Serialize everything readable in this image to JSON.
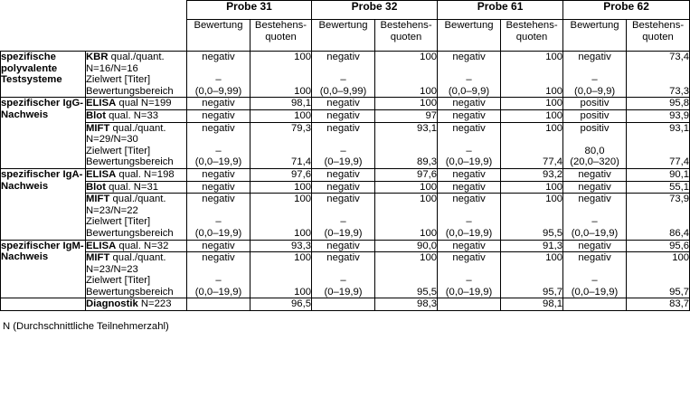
{
  "header": {
    "probes": [
      "Probe 31",
      "Probe 32",
      "Probe 61",
      "Probe 62"
    ],
    "bewertung": "Bewertung",
    "quoten_line1": "Bestehens-",
    "quoten_line2": "quoten"
  },
  "rows": {
    "kbr": {
      "group": "spezifische polyvalente Testsysteme",
      "method_bold": "KBR",
      "method_rest": " qual./quant.",
      "method_line2": "N=16/N=16",
      "zielwert": "Zielwert [Titer]",
      "bereich": "Bewertungsbereich",
      "p31": {
        "bew": "negativ",
        "zw": "–",
        "range": "(0,0–9,99)",
        "q1": "100",
        "q2": "100"
      },
      "p32": {
        "bew": "negativ",
        "zw": "–",
        "range": "(0,0–9,99)",
        "q1": "100",
        "q2": "100"
      },
      "p61": {
        "bew": "negativ",
        "zw": "–",
        "range": "(0,0–9,9)",
        "q1": "100",
        "q2": "100"
      },
      "p62": {
        "bew": "negativ",
        "zw": "–",
        "range": "(0,0–9,9)",
        "q1": "73,4",
        "q2": "73,3"
      }
    },
    "igg": {
      "group": "spezifischer IgG-Nachweis",
      "elisa": {
        "bold": "ELISA",
        "rest": " qual N=199",
        "p31": [
          "negativ",
          "98,1"
        ],
        "p32": [
          "negativ",
          "100"
        ],
        "p61": [
          "negativ",
          "100"
        ],
        "p62": [
          "positiv",
          "95,8"
        ]
      },
      "blot": {
        "bold": "Blot",
        "rest": " qual. N=33",
        "p31": [
          "negativ",
          "100"
        ],
        "p32": [
          "negativ",
          "97"
        ],
        "p61": [
          "negativ",
          "100"
        ],
        "p62": [
          "positiv",
          "93,9"
        ]
      },
      "mift": {
        "bold": "MIFT",
        "rest": " qual./quant.",
        "line2": "N=29/N=30",
        "zielwert": "Zielwert [Titer]",
        "bereich": "Bewertungsbereich",
        "p31": {
          "bew": "negativ",
          "zw": "–",
          "range": "(0,0–19,9)",
          "q1": "79,3",
          "q2": "71,4"
        },
        "p32": {
          "bew": "negativ",
          "zw": "–",
          "range": "(0–19,9)",
          "q1": "93,1",
          "q2": "89,3"
        },
        "p61": {
          "bew": "negativ",
          "zw": "–",
          "range": "(0,0–19,9)",
          "q1": "100",
          "q2": "77,4"
        },
        "p62": {
          "bew": "positiv",
          "zw": "80,0",
          "range": "(20,0–320)",
          "q1": "93,1",
          "q2": "77,4"
        }
      }
    },
    "iga": {
      "group": "spezifischer IgA-Nachweis",
      "elisa": {
        "bold": "ELISA",
        "rest": " qual. N=198",
        "p31": [
          "negativ",
          "97,6"
        ],
        "p32": [
          "negativ",
          "97,6"
        ],
        "p61": [
          "negativ",
          "93,2"
        ],
        "p62": [
          "negativ",
          "90,1"
        ]
      },
      "blot": {
        "bold": "Blot",
        "rest": " qual. N=31",
        "p31": [
          "negativ",
          "100"
        ],
        "p32": [
          "negativ",
          "100"
        ],
        "p61": [
          "negativ",
          "100"
        ],
        "p62": [
          "negativ",
          "55,1"
        ]
      },
      "mift": {
        "bold": "MIFT",
        "rest": " qual./quant.",
        "line2": "N=23/N=22",
        "zielwert": "Zielwert [Titer]",
        "bereich": "Bewertungsbereich",
        "p31": {
          "bew": "negativ",
          "zw": "–",
          "range": "(0,0–19,9)",
          "q1": "100",
          "q2": "100"
        },
        "p32": {
          "bew": "negativ",
          "zw": "–",
          "range": "(0–19,9)",
          "q1": "100",
          "q2": "100"
        },
        "p61": {
          "bew": "negativ",
          "zw": "–",
          "range": "(0,0–19,9)",
          "q1": "100",
          "q2": "95,5"
        },
        "p62": {
          "bew": "negativ",
          "zw": "–",
          "range": "(0,0–19,9)",
          "q1": "73,9",
          "q2": "86,4"
        }
      }
    },
    "igm": {
      "group": "spezifischer IgM-Nachweis",
      "elisa": {
        "bold": "ELISA",
        "rest": " qual. N=32",
        "p31": [
          "negativ",
          "93,3"
        ],
        "p32": [
          "negativ",
          "90,0"
        ],
        "p61": [
          "negativ",
          "91,3"
        ],
        "p62": [
          "negativ",
          "95,6"
        ]
      },
      "mift": {
        "bold": "MIFT",
        "rest": " qual./quant.",
        "line2": "N=23/N=23",
        "zielwert": "Zielwert [Titer]",
        "bereich": "Bewertungsbereich",
        "p31": {
          "bew": "negativ",
          "zw": "–",
          "range": "(0,0–19,9)",
          "q1": "100",
          "q2": "100"
        },
        "p32": {
          "bew": "negativ",
          "zw": "–",
          "range": "(0–19,9)",
          "q1": "100",
          "q2": "95,5"
        },
        "p61": {
          "bew": "negativ",
          "zw": "–",
          "range": "(0,0–19,9)",
          "q1": "100",
          "q2": "95,7"
        },
        "p62": {
          "bew": "negativ",
          "zw": "–",
          "range": "(0,0–19,9)",
          "q1": "100",
          "q2": "95,7"
        }
      }
    },
    "diagnostik": {
      "bold": "Diagnostik",
      "rest": " N=223",
      "p31": "96,5",
      "p32": "98,3",
      "p61": "98,1",
      "p62": "83,7"
    }
  },
  "footnote": "N (Durchschnittliche Teilnehmerzahl)"
}
